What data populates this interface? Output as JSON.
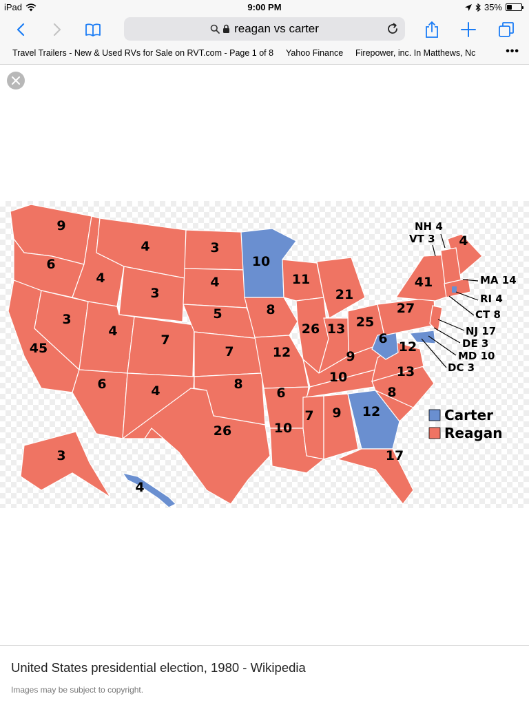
{
  "status_bar": {
    "device": "iPad",
    "time": "9:00 PM",
    "battery": "35%",
    "battery_level": 0.35
  },
  "toolbar": {
    "url": "reagan vs carter",
    "icons": [
      "chevron-left-icon",
      "chevron-right-icon",
      "book-icon",
      "search-icon",
      "lock-icon",
      "reload-icon",
      "share-icon",
      "plus-icon",
      "tabs-icon"
    ]
  },
  "bookmarks": [
    "Travel Trailers - New & Used RVs for Sale on RVT.com - Page 1 of 8",
    "Yahoo Finance",
    "Firepower, inc. In Matthews, Nc"
  ],
  "bookmarks_more": "•••",
  "map": {
    "colors": {
      "carter": "#6a8fd0",
      "reagan": "#ef7463"
    },
    "legend": [
      {
        "label": "Carter",
        "color": "#6a8fd0"
      },
      {
        "label": "Reagan",
        "color": "#ef7463"
      }
    ],
    "state_votes": [
      {
        "state": "WA",
        "votes": "9",
        "winner": "reagan"
      },
      {
        "state": "OR",
        "votes": "6",
        "winner": "reagan"
      },
      {
        "state": "CA",
        "votes": "45",
        "winner": "reagan"
      },
      {
        "state": "NV",
        "votes": "3",
        "winner": "reagan"
      },
      {
        "state": "ID",
        "votes": "4",
        "winner": "reagan"
      },
      {
        "state": "MT",
        "votes": "4",
        "winner": "reagan"
      },
      {
        "state": "WY",
        "votes": "3",
        "winner": "reagan"
      },
      {
        "state": "UT",
        "votes": "4",
        "winner": "reagan"
      },
      {
        "state": "AZ",
        "votes": "6",
        "winner": "reagan"
      },
      {
        "state": "CO",
        "votes": "7",
        "winner": "reagan"
      },
      {
        "state": "NM",
        "votes": "4",
        "winner": "reagan"
      },
      {
        "state": "ND",
        "votes": "3",
        "winner": "reagan"
      },
      {
        "state": "SD",
        "votes": "4",
        "winner": "reagan"
      },
      {
        "state": "NE",
        "votes": "5",
        "winner": "reagan"
      },
      {
        "state": "KS",
        "votes": "7",
        "winner": "reagan"
      },
      {
        "state": "OK",
        "votes": "8",
        "winner": "reagan"
      },
      {
        "state": "TX",
        "votes": "26",
        "winner": "reagan"
      },
      {
        "state": "MN",
        "votes": "10",
        "winner": "carter"
      },
      {
        "state": "IA",
        "votes": "8",
        "winner": "reagan"
      },
      {
        "state": "MO",
        "votes": "12",
        "winner": "reagan"
      },
      {
        "state": "AR",
        "votes": "6",
        "winner": "reagan"
      },
      {
        "state": "LA",
        "votes": "10",
        "winner": "reagan"
      },
      {
        "state": "WI",
        "votes": "11",
        "winner": "reagan"
      },
      {
        "state": "IL",
        "votes": "26",
        "winner": "reagan"
      },
      {
        "state": "MI",
        "votes": "21",
        "winner": "reagan"
      },
      {
        "state": "IN",
        "votes": "13",
        "winner": "reagan"
      },
      {
        "state": "OH",
        "votes": "25",
        "winner": "reagan"
      },
      {
        "state": "KY",
        "votes": "9",
        "winner": "reagan"
      },
      {
        "state": "TN",
        "votes": "10",
        "winner": "reagan"
      },
      {
        "state": "MS",
        "votes": "7",
        "winner": "reagan"
      },
      {
        "state": "AL",
        "votes": "9",
        "winner": "reagan"
      },
      {
        "state": "GA",
        "votes": "12",
        "winner": "carter"
      },
      {
        "state": "FL",
        "votes": "17",
        "winner": "reagan"
      },
      {
        "state": "SC",
        "votes": "8",
        "winner": "reagan"
      },
      {
        "state": "NC",
        "votes": "13",
        "winner": "reagan"
      },
      {
        "state": "VA",
        "votes": "12",
        "winner": "reagan"
      },
      {
        "state": "WV",
        "votes": "6",
        "winner": "carter"
      },
      {
        "state": "PA",
        "votes": "27",
        "winner": "reagan"
      },
      {
        "state": "NY",
        "votes": "41",
        "winner": "reagan"
      },
      {
        "state": "ME",
        "votes": "4",
        "winner": "reagan"
      },
      {
        "state": "AK",
        "votes": "3",
        "winner": "reagan"
      },
      {
        "state": "HI",
        "votes": "4",
        "winner": "carter"
      }
    ],
    "callouts": [
      "NH 4",
      "VT 3",
      "MA 14",
      "RI 4",
      "CT 8",
      "NJ 17",
      "DE 3",
      "MD 10",
      "DC 3"
    ]
  },
  "caption": {
    "title": "United States presidential election, 1980 - Wikipedia",
    "note": "Images may be subject to copyright."
  }
}
